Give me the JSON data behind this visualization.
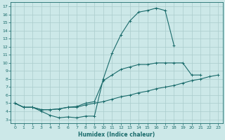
{
  "xlabel": "Humidex (Indice chaleur)",
  "bg_color": "#cce8e8",
  "grid_color": "#aacccc",
  "line_color": "#1a6b6b",
  "xlim": [
    -0.5,
    23.5
  ],
  "ylim": [
    2.5,
    17.5
  ],
  "xticks": [
    0,
    1,
    2,
    3,
    4,
    5,
    6,
    7,
    8,
    9,
    10,
    11,
    12,
    13,
    14,
    15,
    16,
    17,
    18,
    19,
    20,
    21,
    22,
    23
  ],
  "yticks": [
    3,
    4,
    5,
    6,
    7,
    8,
    9,
    10,
    11,
    12,
    13,
    14,
    15,
    16,
    17
  ],
  "line1_x": [
    0,
    1,
    2,
    3,
    4,
    5,
    6,
    7,
    8,
    9,
    10,
    11,
    12,
    13,
    14,
    15,
    16,
    17,
    18
  ],
  "line1_y": [
    5.0,
    4.5,
    4.5,
    4.0,
    3.5,
    3.2,
    3.3,
    3.2,
    3.4,
    3.4,
    8.0,
    11.2,
    13.5,
    15.2,
    16.3,
    16.5,
    16.8,
    16.5,
    12.2
  ],
  "line2_x": [
    0,
    1,
    2,
    3,
    4,
    5,
    6,
    7,
    8,
    9,
    10,
    11,
    12,
    13,
    14,
    15,
    16,
    17,
    18,
    19,
    20,
    21
  ],
  "line2_y": [
    5.0,
    4.5,
    4.5,
    4.2,
    4.2,
    4.3,
    4.5,
    4.6,
    5.0,
    5.2,
    7.8,
    8.5,
    9.2,
    9.5,
    9.8,
    9.8,
    10.0,
    10.0,
    10.0,
    10.0,
    8.5,
    8.5
  ],
  "line3_x": [
    0,
    1,
    2,
    3,
    4,
    5,
    6,
    7,
    8,
    9,
    10,
    11,
    12,
    13,
    14,
    15,
    16,
    17,
    18,
    19,
    20,
    21,
    22,
    23
  ],
  "line3_y": [
    5.0,
    4.5,
    4.5,
    4.2,
    4.2,
    4.3,
    4.5,
    4.5,
    4.8,
    5.0,
    5.2,
    5.5,
    5.8,
    6.0,
    6.3,
    6.5,
    6.8,
    7.0,
    7.2,
    7.5,
    7.8,
    8.0,
    8.3,
    8.5
  ]
}
